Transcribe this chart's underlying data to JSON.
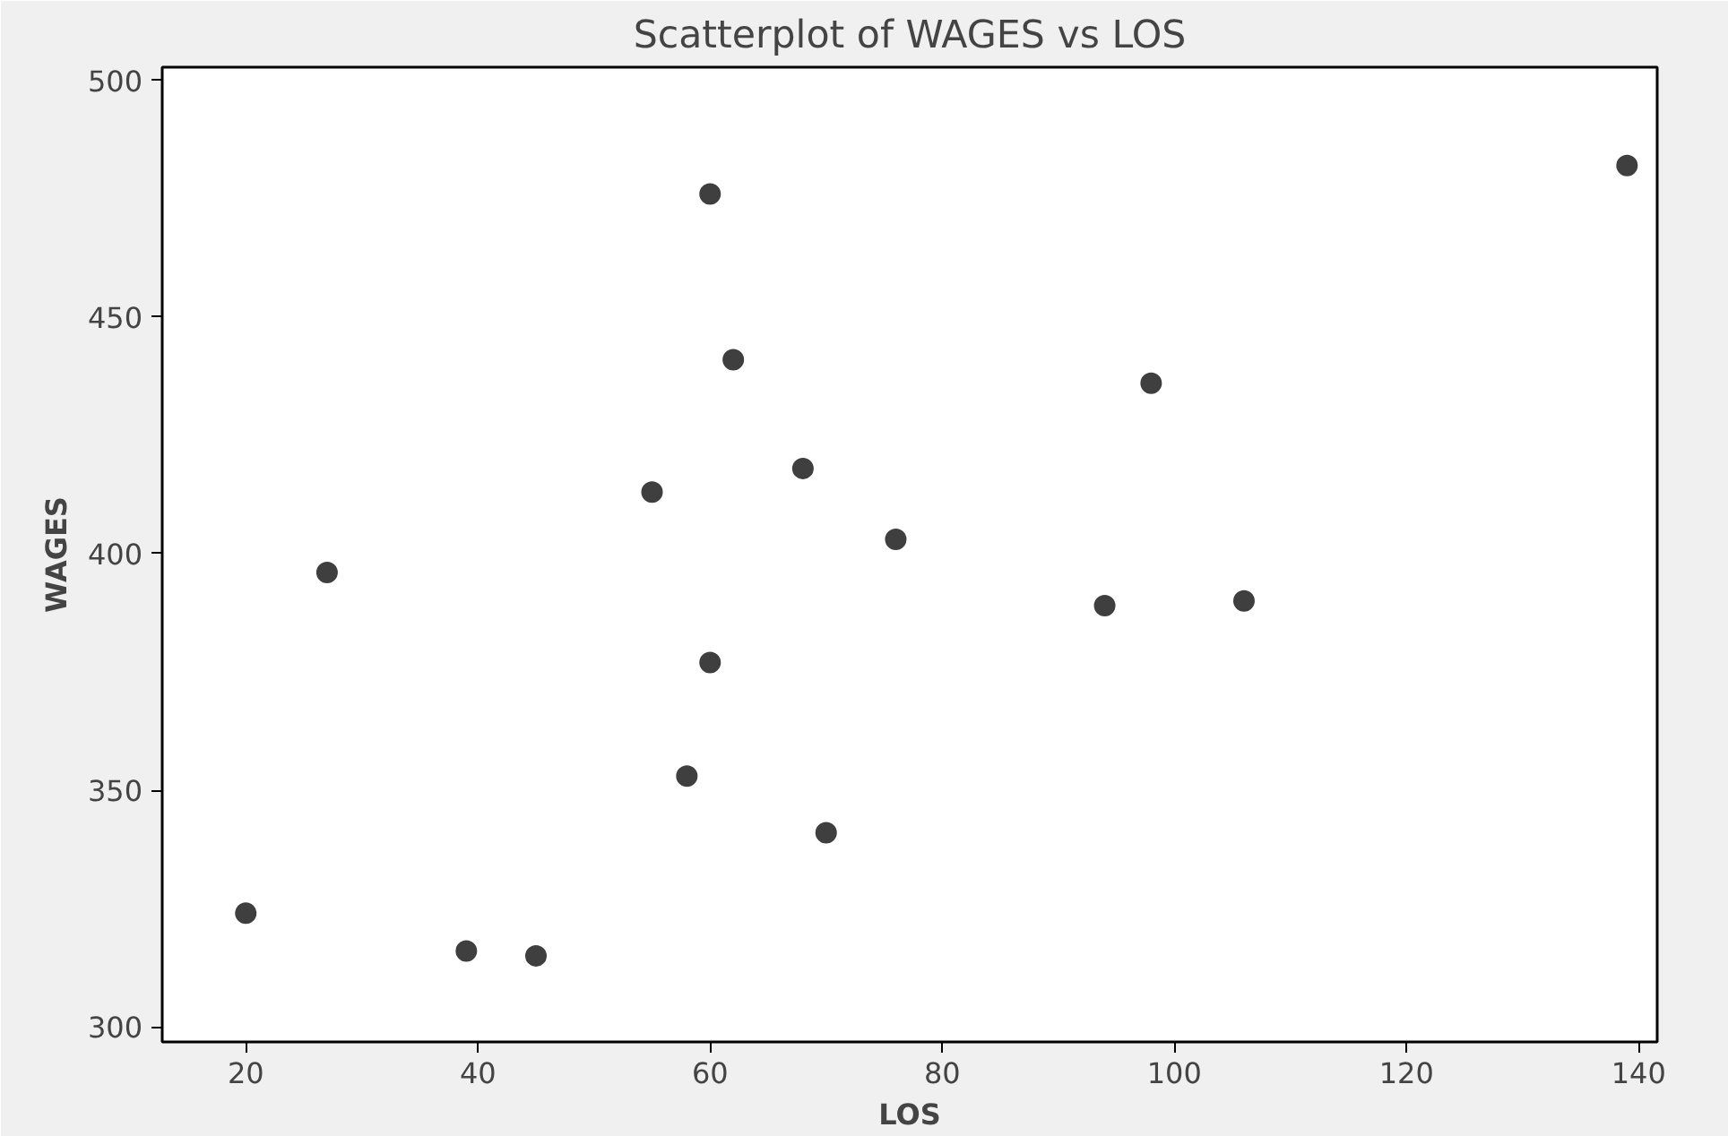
{
  "chart_data": {
    "type": "scatter",
    "title": "Scatterplot of WAGES vs LOS",
    "xlabel": "LOS",
    "ylabel": "WAGES",
    "x": [
      20,
      27,
      39,
      45,
      55,
      60,
      62,
      68,
      76,
      60,
      58,
      70,
      139,
      98,
      94,
      106
    ],
    "series": [
      {
        "color": "#3f3f3f",
        "values": [
          324,
          396,
          316,
          315,
          413,
          476,
          441,
          418,
          403,
          377,
          353,
          341,
          482,
          436,
          389,
          390
        ]
      }
    ],
    "xlim": [
      12.8,
      141.6
    ],
    "ylim": [
      296.8,
      502.8
    ],
    "xticks": [
      20,
      40,
      60,
      80,
      100,
      120,
      140
    ],
    "yticks": [
      300,
      350,
      400,
      450,
      500
    ],
    "marker": "circle",
    "grid": false
  }
}
